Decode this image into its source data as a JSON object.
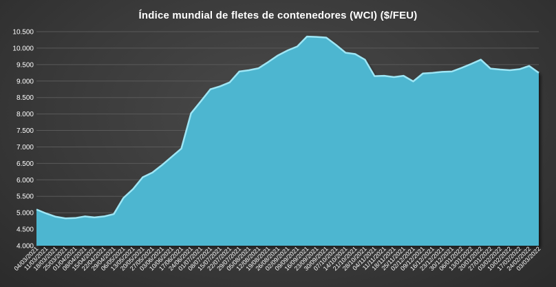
{
  "chart_data": {
    "type": "area",
    "title": "Índice mundial de fletes de contenedores (WCI) ($/FEU)",
    "xlabel": "",
    "ylabel": "",
    "ylim": [
      4000,
      10500
    ],
    "y_ticks": [
      "4.000",
      "4.500",
      "5.000",
      "5.500",
      "6.000",
      "6.500",
      "7.000",
      "7.500",
      "8.000",
      "8.500",
      "9.000",
      "9.500",
      "10.000",
      "10.500"
    ],
    "grid": true,
    "legend": "none",
    "colors": {
      "fill": "#4db6d0",
      "edge": "#9ee6f5",
      "grid": "#5a5a5a",
      "text": "#ffffff"
    },
    "categories": [
      "04/03/2021",
      "11/03/2021",
      "18/03/2021",
      "25/03/2021",
      "01/04/2021",
      "08/04/2021",
      "15/04/2021",
      "22/04/2021",
      "29/04/2021",
      "06/05/2021",
      "13/05/2021",
      "20/05/2021",
      "27/05/2021",
      "03/06/2021",
      "10/06/2021",
      "17/06/2021",
      "24/06/2021",
      "01/07/2021",
      "08/07/2021",
      "15/07/2021",
      "22/07/2021",
      "29/07/2021",
      "05/08/2021",
      "12/08/2021",
      "19/08/2021",
      "26/08/2021",
      "02/09/2021",
      "09/09/2021",
      "16/09/2021",
      "23/09/2021",
      "30/09/2021",
      "07/10/2021",
      "14/10/2021",
      "21/10/2021",
      "28/10/2021",
      "04/11/2021",
      "11/11/2021",
      "18/11/2021",
      "25/11/2021",
      "02/12/2021",
      "09/12/2021",
      "16/12/2021",
      "23/12/2021",
      "30/12/2021",
      "06/01/2022",
      "13/01/2022",
      "20/01/2022",
      "27/01/2022",
      "03/02/2022",
      "10/02/2022",
      "17/02/2022",
      "24/02/2022",
      "03/03/2022"
    ],
    "series": [
      {
        "values": [
          5100,
          4980,
          4880,
          4830,
          4840,
          4890,
          4860,
          4890,
          4960,
          5450,
          5720,
          6080,
          6220,
          6450,
          6700,
          6950,
          8020,
          8380,
          8750,
          8840,
          8960,
          9290,
          9330,
          9390,
          9580,
          9780,
          9930,
          10050,
          10350,
          10340,
          10320,
          10100,
          9860,
          9820,
          9650,
          9150,
          9160,
          9120,
          9160,
          8990,
          9230,
          9250,
          9280,
          9290,
          9400,
          9520,
          9650,
          9380,
          9350,
          9330,
          9360,
          9460,
          9250
        ]
      }
    ]
  }
}
